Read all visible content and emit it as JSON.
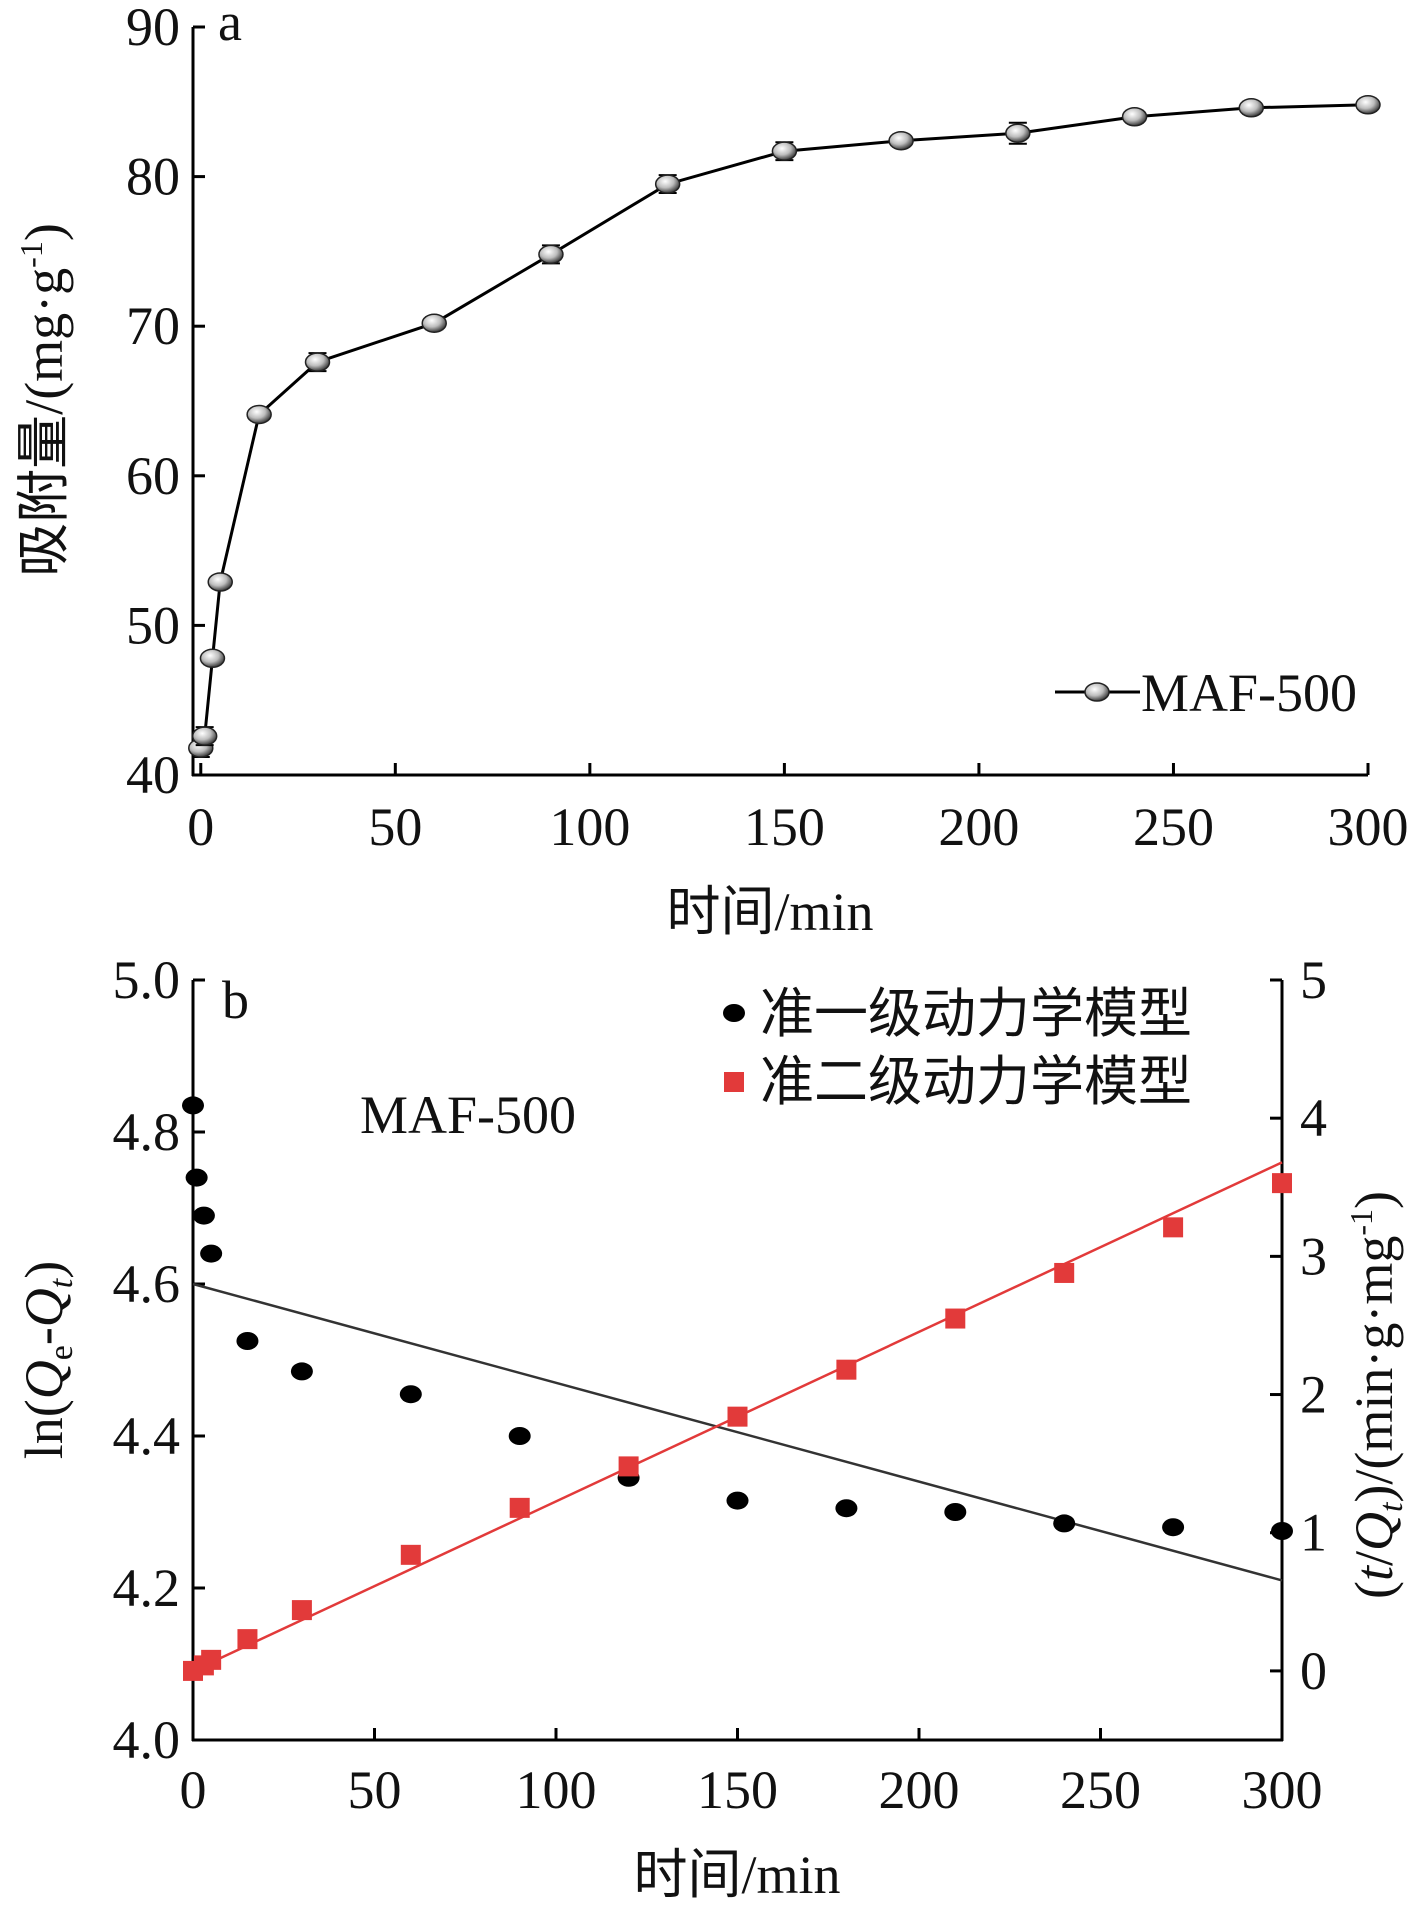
{
  "chart_data": [
    {
      "type": "line",
      "panel_label": "a",
      "xlabel": "时间/min",
      "ylabel": "吸附量/(mg·g",
      "ylabel_sup": "-1",
      "ylabel_close": ")",
      "xlim": [
        -2,
        300
      ],
      "ylim": [
        40,
        90
      ],
      "x_ticks": [
        0,
        50,
        100,
        150,
        200,
        250,
        300
      ],
      "y_ticks": [
        40,
        50,
        60,
        70,
        80,
        90
      ],
      "legend_position": "bottom-right",
      "colors": {
        "line": "#000000",
        "marker": "#bdbdbd"
      },
      "series": [
        {
          "name": "MAF-500",
          "x": [
            0,
            1,
            3,
            5,
            15,
            30,
            60,
            90,
            120,
            150,
            180,
            210,
            240,
            270,
            300
          ],
          "y": [
            41.8,
            42.6,
            47.8,
            52.9,
            64.1,
            67.6,
            70.2,
            74.8,
            79.5,
            81.7,
            82.4,
            82.9,
            84.0,
            84.6,
            84.8
          ],
          "error": [
            0.6,
            0.6,
            0.4,
            0.4,
            0.4,
            0.6,
            0.4,
            0.6,
            0.6,
            0.6,
            0.4,
            0.7,
            0.4,
            0.4,
            0.4
          ]
        }
      ]
    },
    {
      "type": "scatter",
      "panel_label": "b",
      "annotation": "MAF-500",
      "xlabel": "时间/min",
      "ylabel_left_parts": [
        "ln(",
        "Q",
        "e",
        "-",
        "Q",
        "t",
        ")"
      ],
      "ylabel_right_parts": [
        "(",
        "t",
        "/",
        "Q",
        "t",
        ")/(min·g·mg",
        "-1",
        ")"
      ],
      "xlim": [
        0,
        300
      ],
      "ylim_left": [
        4.0,
        5.0
      ],
      "ylim_right": [
        -0.5,
        5
      ],
      "x_ticks": [
        0,
        50,
        100,
        150,
        200,
        250,
        300
      ],
      "y_ticks_left": [
        "4.0",
        "4.2",
        "4.4",
        "4.6",
        "4.8",
        "5.0"
      ],
      "y_ticks_right": [
        0,
        1,
        2,
        3,
        4,
        5
      ],
      "legend_position": "top-right",
      "colors": {
        "first_order": "#000000",
        "second_order": "#e23a3a",
        "first_fit": "#333333"
      },
      "series": [
        {
          "name": "准一级动力学模型",
          "axis": "left",
          "marker": "circle",
          "x": [
            0,
            1,
            3,
            5,
            15,
            30,
            60,
            90,
            120,
            150,
            180,
            210,
            240,
            270,
            300
          ],
          "y": [
            4.835,
            4.74,
            4.69,
            4.64,
            4.525,
            4.485,
            4.455,
            4.4,
            4.345,
            4.315,
            4.305,
            4.3,
            4.285,
            4.28,
            4.275
          ],
          "fit": {
            "x": [
              0,
              300
            ],
            "y": [
              4.6,
              4.21
            ]
          }
        },
        {
          "name": "准二级动力学模型",
          "axis": "right",
          "marker": "square",
          "x": [
            0,
            3,
            5,
            15,
            30,
            60,
            90,
            120,
            150,
            180,
            210,
            240,
            270,
            300
          ],
          "y": [
            0.0,
            0.04,
            0.08,
            0.23,
            0.44,
            0.84,
            1.18,
            1.48,
            1.84,
            2.18,
            2.55,
            2.88,
            3.21,
            3.53
          ],
          "fit": {
            "x": [
              0,
              300
            ],
            "y": [
              0.0,
              3.68
            ]
          }
        }
      ]
    }
  ]
}
